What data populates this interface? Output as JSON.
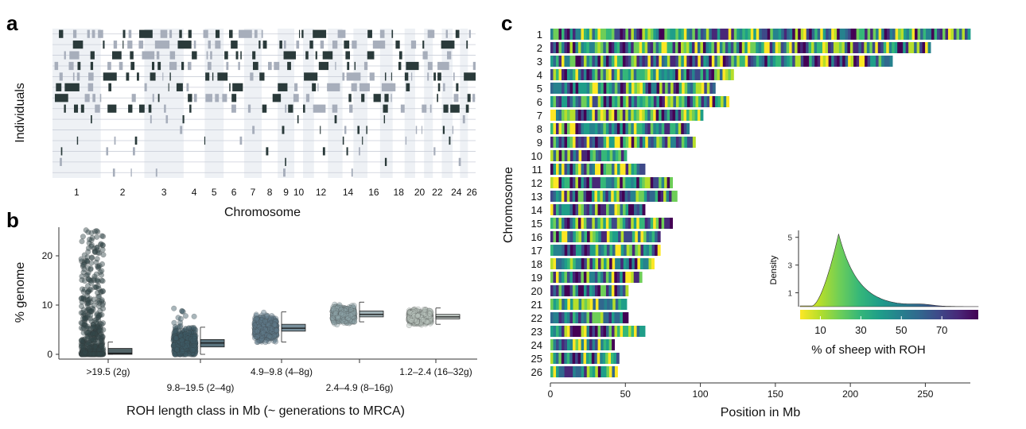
{
  "panels": {
    "a": {
      "letter": "a",
      "ylabel": "Individuals",
      "xlabel": "Chromosome",
      "chart_data": {
        "type": "heatmap",
        "chromosome_tick_labels": [
          "1",
          "2",
          "3",
          "4",
          "5",
          "6",
          "7",
          "8",
          "9",
          "10",
          "12",
          "14",
          "16",
          "18",
          "20",
          "22",
          "24",
          "26"
        ],
        "individuals": 14,
        "colors": {
          "dark": "#2a3a3a",
          "light": "#a7aebb",
          "band": "#eef1f5"
        }
      }
    },
    "b": {
      "letter": "b",
      "ylabel": "% genome",
      "xlabel": "ROH length class in Mb (~ generations to MRCA)",
      "chart_data": {
        "type": "scatter",
        "categories": [
          ">19.5 (2g)",
          "9.8–19.5 (2–4g)",
          "4.9–9.8 (4–8g)",
          "2.4–4.9 (8–16g)",
          "1.2–2.4 (16–32g)"
        ],
        "yticks": [
          0,
          10,
          20
        ],
        "ylim": [
          -1,
          26
        ],
        "series": [
          {
            "median": 0.2,
            "q1": 0.0,
            "q3": 1.2,
            "min": 0.0,
            "max": 2.5,
            "outlier_max": 25.5,
            "color": "#33464a"
          },
          {
            "median": 2.3,
            "q1": 1.5,
            "q3": 3.0,
            "min": 0.0,
            "max": 5.5,
            "outlier_max": 12.2,
            "color": "#3d5a66"
          },
          {
            "median": 5.3,
            "q1": 4.7,
            "q3": 6.1,
            "min": 2.5,
            "max": 8.6,
            "outlier_max": 10.5,
            "color": "#607b8a"
          },
          {
            "median": 8.1,
            "q1": 7.6,
            "q3": 8.8,
            "min": 6.6,
            "max": 10.6,
            "outlier_max": 12.0,
            "color": "#8fa3a8"
          },
          {
            "median": 7.6,
            "q1": 7.2,
            "q3": 8.1,
            "min": 6.1,
            "max": 9.4,
            "outlier_max": 10.4,
            "color": "#b9c3bd"
          }
        ]
      }
    },
    "c": {
      "letter": "c",
      "ylabel": "Chromosome",
      "xlabel": "Position in Mb",
      "chart_data": {
        "type": "heatmap",
        "chromosomes": [
          "1",
          "2",
          "3",
          "4",
          "5",
          "6",
          "7",
          "8",
          "9",
          "10",
          "11",
          "12",
          "13",
          "14",
          "15",
          "16",
          "17",
          "18",
          "19",
          "20",
          "21",
          "22",
          "23",
          "24",
          "25",
          "26"
        ],
        "lengths_mb": [
          275,
          249,
          224,
          120,
          108,
          117,
          100,
          91,
          95,
          50,
          62,
          80,
          83,
          62,
          80,
          72,
          72,
          68,
          60,
          51,
          50,
          51,
          62,
          42,
          45,
          44
        ],
        "xticks": [
          0,
          50,
          100,
          150,
          200,
          250
        ],
        "xlim": [
          0,
          280
        ],
        "inset": {
          "ylabel": "Density",
          "xlabel": "% of sheep with ROH",
          "yticks": [
            1,
            3,
            5
          ],
          "colorbar_ticks": [
            10,
            30,
            50,
            70
          ],
          "xlim": [
            0,
            88
          ],
          "ylim": [
            0,
            5.5
          ]
        },
        "colormap": [
          "#fde725",
          "#b5de2b",
          "#6ece58",
          "#35b779",
          "#1f9e89",
          "#26828e",
          "#31688e",
          "#3e4989",
          "#482878",
          "#440154"
        ]
      }
    }
  }
}
